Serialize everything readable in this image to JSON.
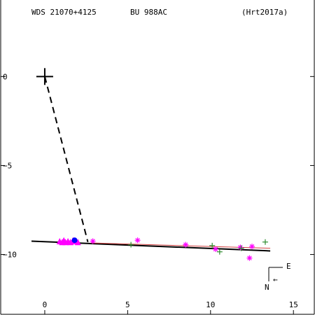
{
  "header": {
    "wds": "WDS 21070+4125",
    "discoverer": "BU  988AC",
    "reference": "(Hrt2017a)"
  },
  "compass": {
    "east": "E",
    "north": "N",
    "arrow": "←"
  },
  "colors": {
    "axis": "#000000",
    "orbit": "#000000",
    "fit": "#d04040",
    "magenta": "#ff00ff",
    "green": "#2e8b2e",
    "blue": "#0000ff"
  },
  "chart_data": {
    "type": "scatter",
    "title": "",
    "xlabel": "",
    "ylabel": "",
    "xlim": [
      -2.7,
      16.3
    ],
    "ylim": [
      -13.4,
      4.3
    ],
    "x_ticks": [
      {
        "value": 0,
        "label": "0"
      },
      {
        "value": 5,
        "label": "5"
      },
      {
        "value": 10,
        "label": "10"
      },
      {
        "value": 15,
        "label": "15"
      }
    ],
    "y_ticks": [
      {
        "value": 0,
        "label": "0"
      },
      {
        "value": -5,
        "label": "−5"
      },
      {
        "value": -10,
        "label": "−10"
      }
    ],
    "primary": {
      "x": 0,
      "y": 0
    },
    "dashed_line": {
      "from": [
        0,
        0
      ],
      "to": [
        2.6,
        -9.3
      ]
    },
    "orbit_line": {
      "from": [
        -0.8,
        -9.25
      ],
      "to": [
        13.6,
        -9.8
      ]
    },
    "fit_line": {
      "from": [
        2.8,
        -9.35
      ],
      "to": [
        13.6,
        -9.65
      ]
    },
    "series": [
      {
        "marker": "triangle",
        "color": "magenta",
        "points": [
          [
            0.9,
            -9.25
          ],
          [
            1.05,
            -9.3
          ],
          [
            1.15,
            -9.2
          ],
          [
            1.25,
            -9.3
          ],
          [
            1.4,
            -9.25
          ],
          [
            1.55,
            -9.3
          ],
          [
            1.7,
            -9.2
          ],
          [
            1.85,
            -9.25
          ],
          [
            2.0,
            -9.3
          ]
        ]
      },
      {
        "marker": "circle",
        "color": "blue",
        "points": [
          [
            1.8,
            -9.2
          ]
        ]
      },
      {
        "marker": "asterisk",
        "color": "magenta",
        "points": [
          [
            2.9,
            -9.25
          ],
          [
            5.6,
            -9.2
          ],
          [
            8.5,
            -9.45
          ],
          [
            10.3,
            -9.7
          ],
          [
            11.8,
            -9.6
          ],
          [
            12.35,
            -10.2
          ],
          [
            12.5,
            -9.55
          ]
        ]
      },
      {
        "marker": "plus",
        "color": "green",
        "points": [
          [
            5.2,
            -9.45
          ],
          [
            10.1,
            -9.5
          ],
          [
            10.55,
            -9.85
          ],
          [
            11.85,
            -9.65
          ],
          [
            13.3,
            -9.3
          ]
        ]
      }
    ]
  }
}
